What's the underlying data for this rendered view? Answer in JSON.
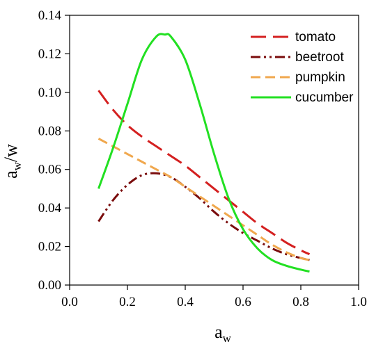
{
  "chart_data": {
    "type": "line",
    "xlabel": {
      "main": "a",
      "sub": "w"
    },
    "ylabel": {
      "main": "a",
      "sub": "w",
      "suffix": "/w"
    },
    "xlim": [
      0.0,
      1.0
    ],
    "ylim": [
      0.0,
      0.14
    ],
    "x_ticks": [
      "0.0",
      "0.2",
      "0.4",
      "0.6",
      "0.8",
      "1.0"
    ],
    "y_ticks": [
      "0.00",
      "0.02",
      "0.04",
      "0.06",
      "0.08",
      "0.10",
      "0.12",
      "0.14"
    ],
    "grid": false,
    "legend_position": "top-right",
    "series": [
      {
        "name": "tomato",
        "color": "#d42020",
        "dash": "long-dash",
        "x": [
          0.1,
          0.15,
          0.2,
          0.25,
          0.3,
          0.35,
          0.4,
          0.45,
          0.5,
          0.55,
          0.6,
          0.65,
          0.7,
          0.75,
          0.8,
          0.83
        ],
        "y": [
          0.101,
          0.091,
          0.083,
          0.077,
          0.072,
          0.067,
          0.062,
          0.056,
          0.05,
          0.044,
          0.038,
          0.032,
          0.027,
          0.022,
          0.018,
          0.016
        ]
      },
      {
        "name": "beetroot",
        "color": "#7a0c0c",
        "dash": "dash-dot-dot",
        "x": [
          0.1,
          0.15,
          0.2,
          0.25,
          0.3,
          0.35,
          0.4,
          0.45,
          0.5,
          0.55,
          0.6,
          0.65,
          0.7,
          0.75,
          0.8,
          0.83
        ],
        "y": [
          0.033,
          0.044,
          0.052,
          0.057,
          0.058,
          0.056,
          0.051,
          0.045,
          0.038,
          0.032,
          0.027,
          0.023,
          0.019,
          0.016,
          0.014,
          0.013
        ]
      },
      {
        "name": "pumpkin",
        "color": "#f0a84e",
        "dash": "dash",
        "x": [
          0.1,
          0.15,
          0.2,
          0.25,
          0.3,
          0.35,
          0.4,
          0.45,
          0.5,
          0.55,
          0.6,
          0.65,
          0.7,
          0.75,
          0.8,
          0.83
        ],
        "y": [
          0.076,
          0.072,
          0.068,
          0.064,
          0.06,
          0.056,
          0.051,
          0.046,
          0.041,
          0.036,
          0.031,
          0.026,
          0.021,
          0.017,
          0.014,
          0.013
        ]
      },
      {
        "name": "cucumber",
        "color": "#22e022",
        "dash": "solid",
        "x": [
          0.1,
          0.15,
          0.2,
          0.25,
          0.3,
          0.33,
          0.35,
          0.4,
          0.45,
          0.5,
          0.55,
          0.6,
          0.65,
          0.7,
          0.75,
          0.8,
          0.83
        ],
        "y": [
          0.05,
          0.071,
          0.094,
          0.117,
          0.129,
          0.13,
          0.129,
          0.117,
          0.094,
          0.068,
          0.045,
          0.029,
          0.019,
          0.013,
          0.01,
          0.008,
          0.007
        ]
      }
    ]
  }
}
